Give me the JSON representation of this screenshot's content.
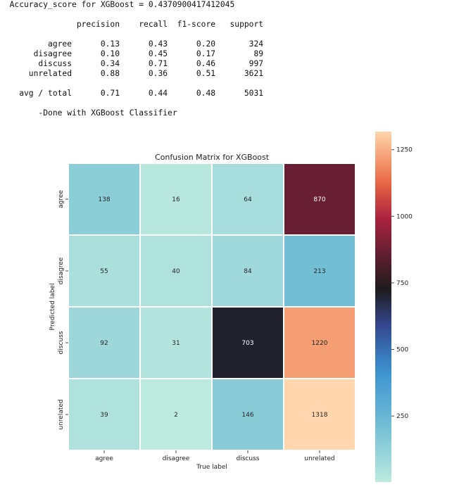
{
  "console": {
    "accuracy_line": "Accuracy_score for XGBoost = 0.4370900417412045",
    "report_header": [
      "precision",
      "recall",
      "f1-score",
      "support"
    ],
    "report_rows": [
      {
        "label": "agree",
        "precision": "0.13",
        "recall": "0.43",
        "f1": "0.20",
        "support": "324"
      },
      {
        "label": "disagree",
        "precision": "0.10",
        "recall": "0.45",
        "f1": "0.17",
        "support": "89"
      },
      {
        "label": "discuss",
        "precision": "0.34",
        "recall": "0.71",
        "f1": "0.46",
        "support": "997"
      },
      {
        "label": "unrelated",
        "precision": "0.88",
        "recall": "0.36",
        "f1": "0.51",
        "support": "3621"
      }
    ],
    "report_total": {
      "label": "avg / total",
      "precision": "0.71",
      "recall": "0.44",
      "f1": "0.48",
      "support": "5031"
    },
    "done_line": "-Done with XGBoost Classifier"
  },
  "chart_data": {
    "type": "heatmap",
    "title": "Confusion Matrix for XGBoost",
    "xlabel": "True label",
    "ylabel": "Predicted label",
    "x_categories": [
      "agree",
      "disagree",
      "discuss",
      "unrelated"
    ],
    "y_categories": [
      "agree",
      "disagree",
      "discuss",
      "unrelated"
    ],
    "values": [
      [
        138,
        16,
        64,
        870
      ],
      [
        55,
        40,
        84,
        213
      ],
      [
        92,
        31,
        703,
        1220
      ],
      [
        39,
        2,
        146,
        1318
      ]
    ],
    "colorbar": {
      "min": 2,
      "max": 1318,
      "ticks": [
        250,
        500,
        750,
        1000,
        1250
      ],
      "colormap": "icefire"
    },
    "annotations": true
  }
}
